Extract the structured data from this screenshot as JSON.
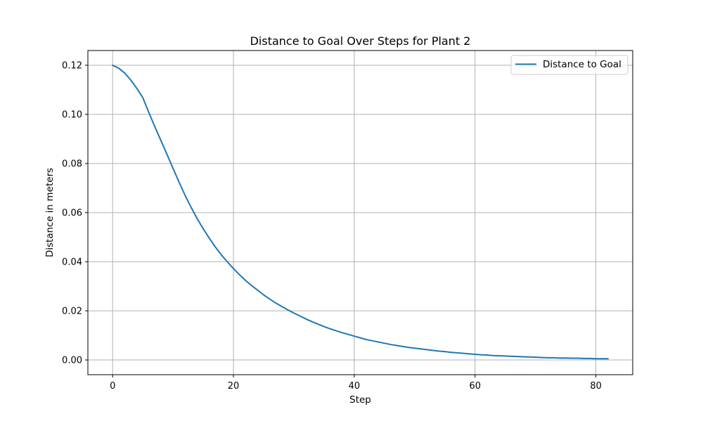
{
  "chart_data": {
    "type": "line",
    "title": "Distance to Goal Over Steps for Plant 2",
    "xlabel": "Step",
    "ylabel": "Distance in meters",
    "xlim": [
      -4.1,
      86.1
    ],
    "ylim": [
      -0.006,
      0.126
    ],
    "xticks": [
      0,
      20,
      40,
      60,
      80
    ],
    "xtick_labels": [
      "0",
      "20",
      "40",
      "60",
      "80"
    ],
    "yticks": [
      0.0,
      0.02,
      0.04,
      0.06,
      0.08,
      0.1,
      0.12
    ],
    "ytick_labels": [
      "0.00",
      "0.02",
      "0.04",
      "0.06",
      "0.08",
      "0.10",
      "0.12"
    ],
    "grid": true,
    "legend_position": "top-right",
    "series": [
      {
        "name": "Distance to Goal",
        "color": "#1f77b4",
        "x": [
          0,
          1,
          2,
          3,
          4,
          5,
          6,
          7,
          8,
          9,
          10,
          11,
          12,
          13,
          14,
          15,
          16,
          17,
          18,
          19,
          20,
          21,
          22,
          23,
          24,
          25,
          26,
          27,
          28,
          29,
          30,
          31,
          32,
          33,
          34,
          35,
          36,
          37,
          38,
          39,
          40,
          41,
          42,
          43,
          44,
          45,
          46,
          47,
          48,
          49,
          50,
          51,
          52,
          53,
          54,
          55,
          56,
          57,
          58,
          59,
          60,
          61,
          62,
          63,
          64,
          65,
          66,
          67,
          68,
          69,
          70,
          71,
          72,
          73,
          74,
          75,
          76,
          77,
          78,
          79,
          80,
          81,
          82
        ],
        "y": [
          0.12,
          0.1188,
          0.1168,
          0.114,
          0.1106,
          0.1068,
          0.1007,
          0.0949,
          0.0893,
          0.0837,
          0.078,
          0.0724,
          0.067,
          0.0621,
          0.0575,
          0.0534,
          0.0496,
          0.046,
          0.0428,
          0.0399,
          0.0372,
          0.0347,
          0.0324,
          0.0303,
          0.0284,
          0.0265,
          0.0248,
          0.0232,
          0.0218,
          0.0204,
          0.0191,
          0.0179,
          0.0167,
          0.0156,
          0.0146,
          0.0136,
          0.0127,
          0.0119,
          0.0111,
          0.0104,
          0.0097,
          0.009,
          0.0083,
          0.0078,
          0.0073,
          0.0068,
          0.0063,
          0.0059,
          0.0055,
          0.0051,
          0.0048,
          0.0045,
          0.0042,
          0.0039,
          0.0036,
          0.0034,
          0.0031,
          0.0029,
          0.0027,
          0.0025,
          0.0023,
          0.0021,
          0.002,
          0.0018,
          0.0017,
          0.0016,
          0.0015,
          0.0014,
          0.0013,
          0.0012,
          0.0011,
          0.001,
          0.0009,
          0.0009,
          0.0008,
          0.0008,
          0.0007,
          0.0007,
          0.0006,
          0.0006,
          0.0005,
          0.0005,
          0.0005
        ]
      }
    ]
  }
}
